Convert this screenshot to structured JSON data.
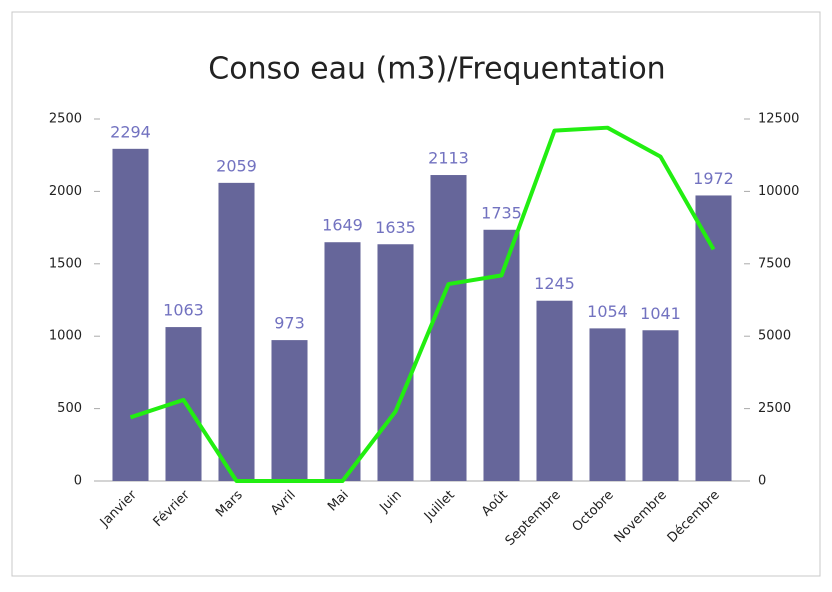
{
  "chart_data": {
    "type": "bar-line",
    "title": "Conso eau (m3)/Frequentation",
    "categories": [
      "Janvier",
      "Février",
      "Mars",
      "Avril",
      "Mai",
      "Juin",
      "Juillet",
      "Août",
      "Septembre",
      "Octobre",
      "Novembre",
      "Décembre"
    ],
    "series": [
      {
        "type": "bar",
        "color": "#66669a",
        "values": [
          2294,
          1063,
          2059,
          973,
          1649,
          1635,
          2113,
          1735,
          1245,
          1054,
          1041,
          1972
        ]
      },
      {
        "type": "line",
        "axis": "y2",
        "color": "#22ee11",
        "values": [
          2200,
          2800,
          0,
          0,
          0,
          2400,
          6800,
          7100,
          12100,
          12200,
          11200,
          8000
        ]
      }
    ],
    "ylim": [
      0,
      2500
    ],
    "yticks": [
      0,
      500,
      1000,
      1500,
      2000,
      2500
    ],
    "y2lim": [
      0,
      12500
    ],
    "y2ticks": [
      0,
      2500,
      5000,
      7500,
      10000,
      12500
    ],
    "grid": false
  }
}
